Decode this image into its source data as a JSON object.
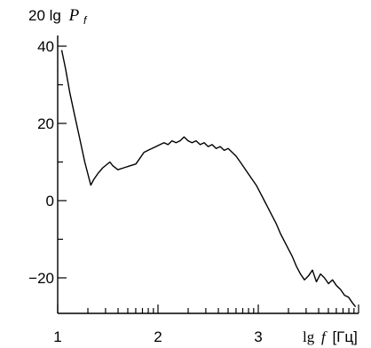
{
  "chart_data": {
    "type": "line",
    "ylabel_prefix": "20 lg",
    "ylabel_var": "P",
    "ylabel_sub": "f",
    "xlabel_prefix": "lg",
    "xlabel_var": "f",
    "xlabel_unit": "[Гц]",
    "xlim": [
      1,
      4
    ],
    "ylim": [
      -28,
      42
    ],
    "x_ticks": [
      1,
      2,
      3
    ],
    "y_ticks": [
      40,
      20,
      0,
      -20
    ],
    "x_tick_labels": [
      "1",
      "2",
      "3"
    ],
    "y_tick_labels": [
      "40",
      "20",
      "0",
      "−20"
    ],
    "grid": false,
    "series": [
      {
        "x": [
          1.04,
          1.08,
          1.12,
          1.17,
          1.22,
          1.27,
          1.33,
          1.36,
          1.4,
          1.45,
          1.52,
          1.55,
          1.6,
          1.66,
          1.72,
          1.78,
          1.82,
          1.86,
          1.9,
          1.94,
          1.98,
          2.02,
          2.06,
          2.1,
          2.14,
          2.18,
          2.22,
          2.26,
          2.3,
          2.34,
          2.38,
          2.42,
          2.46,
          2.5,
          2.54,
          2.58,
          2.62,
          2.66,
          2.7,
          2.74,
          2.78,
          2.82,
          2.86,
          2.9,
          2.94,
          2.98,
          3.02,
          3.06,
          3.1,
          3.14,
          3.18,
          3.22,
          3.26,
          3.3,
          3.34,
          3.38,
          3.42,
          3.46,
          3.5,
          3.54,
          3.58,
          3.62,
          3.66,
          3.7,
          3.74,
          3.78,
          3.82,
          3.86,
          3.9,
          3.94,
          3.97
        ],
        "y": [
          39,
          34,
          28,
          22,
          16,
          10,
          4,
          5.5,
          7,
          8.5,
          10,
          9,
          8,
          8.5,
          9,
          9.5,
          11,
          12.5,
          13,
          13.5,
          14,
          14.5,
          15,
          14.5,
          15.5,
          15,
          15.5,
          16.5,
          15.5,
          15,
          15.5,
          14.5,
          15,
          14,
          14.5,
          13.5,
          14,
          13,
          13.5,
          12.5,
          11.5,
          10,
          8.5,
          7,
          5.5,
          4,
          2,
          0,
          -2,
          -4,
          -6,
          -8.5,
          -10.5,
          -12.5,
          -14.5,
          -17,
          -19,
          -20.5,
          -19.5,
          -18,
          -21,
          -19,
          -20,
          -21.5,
          -20.5,
          -22,
          -23,
          -24.5,
          -25,
          -26.5,
          -27.5
        ]
      }
    ]
  }
}
